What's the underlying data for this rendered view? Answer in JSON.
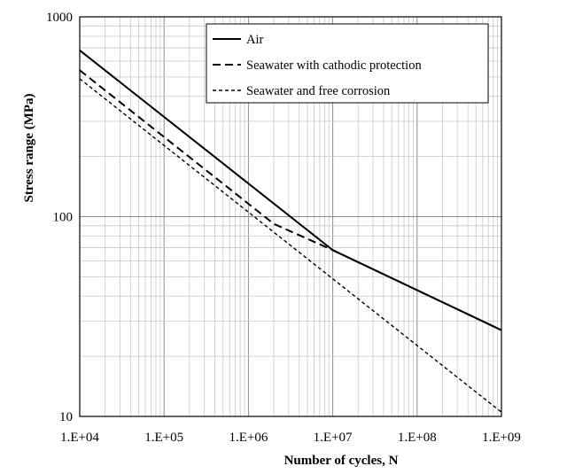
{
  "chart_data": {
    "type": "line",
    "xlabel": "Number of cycles, N",
    "ylabel": "Stress range (MPa)",
    "x_scale": "log",
    "y_scale": "log",
    "xlim": [
      10000,
      1000000000
    ],
    "ylim": [
      10,
      1000
    ],
    "x_ticks": [
      {
        "value": 10000,
        "label": "1.E+04"
      },
      {
        "value": 100000,
        "label": "1.E+05"
      },
      {
        "value": 1000000,
        "label": "1.E+06"
      },
      {
        "value": 10000000,
        "label": "1.E+07"
      },
      {
        "value": 100000000,
        "label": "1.E+08"
      },
      {
        "value": 1000000000,
        "label": "1.E+09"
      }
    ],
    "y_ticks": [
      {
        "value": 10,
        "label": "10"
      },
      {
        "value": 100,
        "label": "100"
      },
      {
        "value": 1000,
        "label": "1000"
      }
    ],
    "grid": true,
    "legend_position": "top-right",
    "series": [
      {
        "name": "Air",
        "style": "solid",
        "color": "#000000",
        "points": [
          {
            "x": 10000,
            "y": 680
          },
          {
            "x": 10000000,
            "y": 68
          },
          {
            "x": 1000000000,
            "y": 27
          }
        ]
      },
      {
        "name": "Seawater with cathodic protection",
        "style": "dashed",
        "color": "#000000",
        "points": [
          {
            "x": 10000,
            "y": 540
          },
          {
            "x": 2000000,
            "y": 92
          },
          {
            "x": 10000000,
            "y": 68
          },
          {
            "x": 1000000000,
            "y": 27
          }
        ]
      },
      {
        "name": "Seawater and free corrosion",
        "style": "short-dashed",
        "color": "#000000",
        "points": [
          {
            "x": 10000,
            "y": 490
          },
          {
            "x": 1000000000,
            "y": 10.5
          }
        ]
      }
    ]
  }
}
